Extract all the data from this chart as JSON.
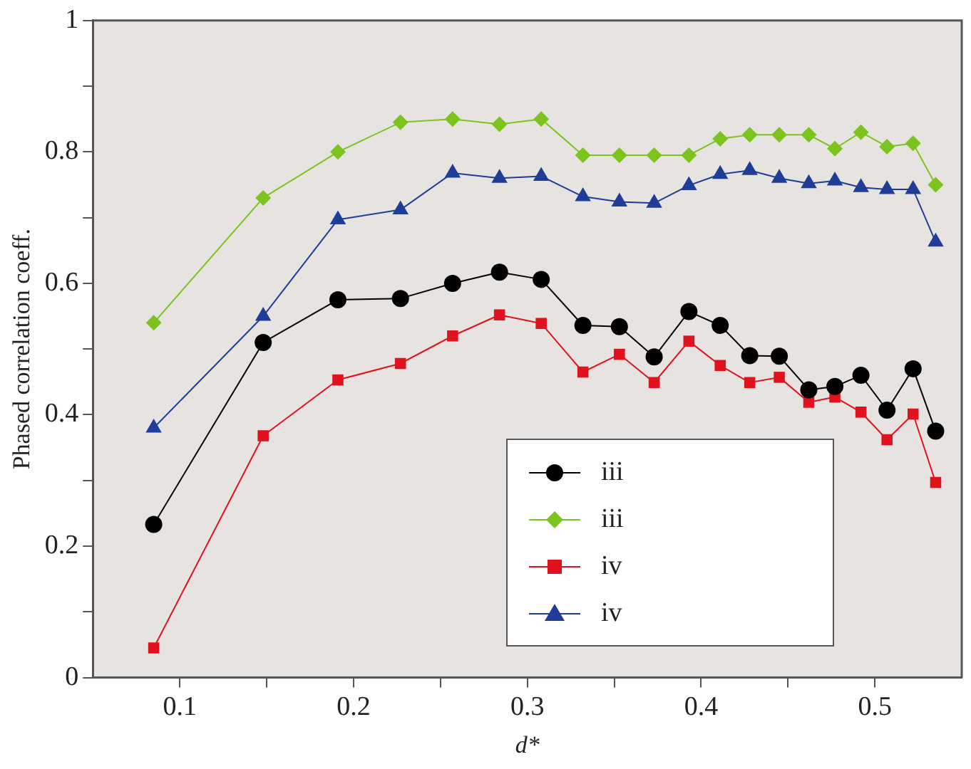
{
  "chart_data": {
    "type": "line",
    "xlabel": "d*",
    "ylabel": "Phased correlation coeff.",
    "x": [
      0.085,
      0.148,
      0.191,
      0.227,
      0.257,
      0.284,
      0.308,
      0.332,
      0.353,
      0.373,
      0.393,
      0.411,
      0.428,
      0.445,
      0.462,
      0.477,
      0.492,
      0.507,
      0.522,
      0.535
    ],
    "xlim": [
      0.05,
      0.55
    ],
    "xticks": [
      0.1,
      {
        "value": 0.15,
        "label": null
      },
      0.2,
      {
        "value": 0.25,
        "label": null
      },
      0.3,
      {
        "value": 0.35,
        "label": null
      },
      0.4,
      {
        "value": 0.45,
        "label": null
      },
      0.5
    ],
    "ylim": [
      0,
      1
    ],
    "yticks": [
      0,
      {
        "value": 0.1,
        "label": null
      },
      0.2,
      {
        "value": 0.3,
        "label": null
      },
      0.4,
      {
        "value": 0.5,
        "label": null
      },
      0.6,
      {
        "value": 0.7,
        "label": null
      },
      0.8,
      {
        "value": 0.9,
        "label": null
      },
      1
    ],
    "grid": false,
    "legend": "bottom right",
    "series": [
      {
        "name": "iii",
        "color": "#000000",
        "marker": "circle",
        "values": [
          0.233,
          0.51,
          0.575,
          0.577,
          0.6,
          0.617,
          0.606,
          0.536,
          0.534,
          0.488,
          0.557,
          0.536,
          0.49,
          0.489,
          0.438,
          0.443,
          0.46,
          0.407,
          0.47,
          0.375
        ]
      },
      {
        "name": "iii",
        "color": "#7dc31e",
        "marker": "diamond",
        "values": [
          0.54,
          0.73,
          0.8,
          0.845,
          0.85,
          0.842,
          0.85,
          0.795,
          0.795,
          0.795,
          0.795,
          0.82,
          0.826,
          0.826,
          0.826,
          0.805,
          0.83,
          0.808,
          0.813,
          0.75
        ]
      },
      {
        "name": "iv",
        "color": "#e0121e",
        "marker": "square",
        "values": [
          0.045,
          0.368,
          0.453,
          0.478,
          0.52,
          0.552,
          0.539,
          0.465,
          0.492,
          0.449,
          0.512,
          0.475,
          0.449,
          0.457,
          0.419,
          0.427,
          0.404,
          0.362,
          0.401,
          0.297
        ]
      },
      {
        "name": "iv",
        "color": "#1f3d96",
        "marker": "triangle",
        "values": [
          0.38,
          0.55,
          0.697,
          0.712,
          0.768,
          0.76,
          0.763,
          0.732,
          0.724,
          0.722,
          0.749,
          0.766,
          0.772,
          0.76,
          0.752,
          0.756,
          0.746,
          0.743,
          0.743,
          0.663
        ]
      }
    ]
  }
}
